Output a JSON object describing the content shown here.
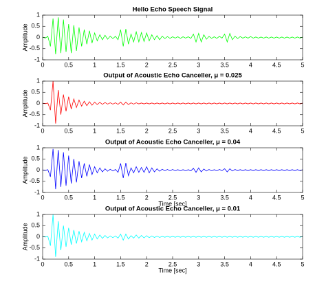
{
  "chart_data": [
    {
      "type": "line",
      "title": "Hello Echo Speech Signal",
      "ylabel": "Amplitude",
      "x": [
        0,
        0.05,
        0.1,
        0.15,
        0.2,
        0.25,
        0.3,
        0.35,
        0.4,
        0.45,
        0.5,
        0.55,
        0.6,
        0.65,
        0.7,
        0.75,
        0.8,
        0.85,
        0.9,
        0.95,
        1,
        1.05,
        1.1,
        1.15,
        1.2,
        1.25,
        1.3,
        1.35,
        1.4,
        1.45,
        1.5,
        1.55,
        1.6,
        1.65,
        1.7,
        1.75,
        1.8,
        1.85,
        1.9,
        1.95,
        2,
        2.05,
        2.1,
        2.15,
        2.2,
        2.25,
        2.3,
        2.35,
        2.4,
        2.45,
        2.5,
        2.55,
        2.6,
        2.65,
        2.7,
        2.75,
        2.8,
        2.85,
        2.9,
        2.95,
        3,
        3.05,
        3.1,
        3.15,
        3.2,
        3.25,
        3.3,
        3.35,
        3.4,
        3.45,
        3.5,
        3.55,
        3.6,
        3.65,
        3.7,
        3.75,
        3.8,
        3.85,
        3.9,
        3.95,
        4,
        4.05,
        4.1,
        4.15,
        4.2,
        4.25,
        4.3,
        4.35,
        4.4,
        4.45,
        4.5,
        4.55,
        4.6,
        4.65,
        4.7,
        4.75,
        4.8,
        4.85,
        4.9,
        4.95,
        5
      ],
      "series": [
        {
          "color": "#00ff00",
          "values": [
            0.02,
            -0.03,
            0.05,
            -0.4,
            0.85,
            -0.75,
            0.9,
            -0.7,
            0.8,
            -0.65,
            0.6,
            -0.7,
            0.55,
            -0.6,
            0.45,
            -0.4,
            0.35,
            -0.3,
            0.3,
            -0.25,
            0.2,
            -0.15,
            0.12,
            -0.1,
            0.1,
            -0.08,
            0.06,
            -0.05,
            0.05,
            -0.1,
            0.35,
            -0.4,
            0.38,
            -0.3,
            0.15,
            -0.2,
            0.25,
            -0.2,
            0.22,
            -0.18,
            0.2,
            -0.15,
            0.12,
            -0.1,
            0.08,
            -0.1,
            0.06,
            -0.05,
            0.04,
            -0.04,
            0.03,
            -0.03,
            0.03,
            -0.04,
            0.03,
            -0.03,
            0.03,
            -0.04,
            0.15,
            -0.2,
            0.18,
            -0.2,
            0.12,
            -0.08,
            0.05,
            -0.04,
            0.03,
            -0.04,
            0.05,
            -0.03,
            0.15,
            -0.2,
            0.18,
            -0.1,
            0.06,
            -0.05,
            0.04,
            -0.03,
            0.03,
            -0.03,
            0.04,
            -0.03,
            0.02,
            -0.03,
            0.02,
            -0.03,
            0.02,
            -0.03,
            0.02,
            -0.03,
            0.02,
            -0.03,
            0.02,
            -0.03,
            0.02,
            -0.03,
            0.02,
            -0.03,
            0.02,
            -0.03,
            0.02
          ]
        }
      ],
      "xlim": [
        0,
        5
      ],
      "ylim": [
        -1,
        1
      ],
      "xticks": [
        0,
        0.5,
        1,
        1.5,
        2,
        2.5,
        3,
        3.5,
        4,
        4.5,
        5
      ],
      "yticks": [
        -1,
        -0.5,
        0,
        0.5,
        1
      ]
    },
    {
      "type": "line",
      "title": "Output of Acoustic Echo Canceller, μ = 0.025",
      "ylabel": "Amplitude",
      "x": [
        0,
        0.05,
        0.1,
        0.15,
        0.2,
        0.25,
        0.3,
        0.35,
        0.4,
        0.45,
        0.5,
        0.55,
        0.6,
        0.65,
        0.7,
        0.75,
        0.8,
        0.85,
        0.9,
        0.95,
        1,
        1.05,
        1.1,
        1.15,
        1.2,
        1.25,
        1.3,
        1.35,
        1.4,
        1.45,
        1.5,
        1.55,
        1.6,
        1.65,
        1.7,
        1.75,
        1.8,
        1.85,
        1.9,
        1.95,
        2,
        2.05,
        2.1,
        2.15,
        2.2,
        2.25,
        2.3,
        2.35,
        2.4,
        2.45,
        2.5,
        2.55,
        2.6,
        2.65,
        2.7,
        2.75,
        2.8,
        2.85,
        2.9,
        2.95,
        3,
        3.05,
        3.1,
        3.15,
        3.2,
        3.25,
        3.3,
        3.35,
        3.4,
        3.45,
        3.5,
        3.55,
        3.6,
        3.65,
        3.7,
        3.75,
        3.8,
        3.85,
        3.9,
        3.95,
        4,
        4.05,
        4.1,
        4.15,
        4.2,
        4.25,
        4.3,
        4.35,
        4.4,
        4.45,
        4.5,
        4.55,
        4.6,
        4.65,
        4.7,
        4.75,
        4.8,
        4.85,
        4.9,
        4.95,
        5
      ],
      "series": [
        {
          "color": "#ff0000",
          "values": [
            0.01,
            -0.01,
            0.02,
            -0.3,
            1,
            -0.9,
            0.6,
            -0.5,
            0.4,
            -0.35,
            0.3,
            -0.25,
            0.2,
            -0.18,
            0.15,
            -0.12,
            0.1,
            -0.1,
            0.08,
            -0.08,
            0.06,
            -0.05,
            0.05,
            -0.04,
            0.04,
            -0.03,
            0.03,
            -0.03,
            0.03,
            -0.04,
            0.06,
            -0.07,
            0.06,
            -0.05,
            0.03,
            -0.03,
            0.03,
            -0.02,
            0.02,
            -0.02,
            0.02,
            -0.02,
            0.02,
            -0.02,
            0.02,
            -0.02,
            0.02,
            -0.02,
            0.02,
            -0.02,
            0.02,
            -0.02,
            0.02,
            -0.02,
            0.02,
            -0.02,
            0.02,
            -0.02,
            0.02,
            -0.02,
            0.02,
            -0.02,
            0.02,
            -0.02,
            0.02,
            -0.02,
            0.02,
            -0.02,
            0.02,
            -0.02,
            0.02,
            -0.02,
            0.02,
            -0.02,
            0.02,
            -0.02,
            0.02,
            -0.02,
            0.02,
            -0.02,
            0.02,
            -0.02,
            0.02,
            -0.02,
            0.02,
            -0.02,
            0.02,
            -0.02,
            0.02,
            -0.02,
            0.02,
            -0.02,
            0.02,
            -0.02,
            0.02,
            -0.02,
            0.02,
            -0.02,
            0.02,
            -0.02,
            0.02
          ]
        }
      ],
      "xlim": [
        0,
        5
      ],
      "ylim": [
        -1,
        1
      ],
      "xticks": [
        0,
        0.5,
        1,
        1.5,
        2,
        2.5,
        3,
        3.5,
        4,
        4.5,
        5
      ],
      "yticks": [
        -1,
        -0.5,
        0,
        0.5,
        1
      ]
    },
    {
      "type": "line",
      "title": "Output of Acoustic Echo Canceller, μ = 0.04",
      "xlabel": "Time [sec]",
      "ylabel": "Amplitude",
      "x": [
        0,
        0.05,
        0.1,
        0.15,
        0.2,
        0.25,
        0.3,
        0.35,
        0.4,
        0.45,
        0.5,
        0.55,
        0.6,
        0.65,
        0.7,
        0.75,
        0.8,
        0.85,
        0.9,
        0.95,
        1,
        1.05,
        1.1,
        1.15,
        1.2,
        1.25,
        1.3,
        1.35,
        1.4,
        1.45,
        1.5,
        1.55,
        1.6,
        1.65,
        1.7,
        1.75,
        1.8,
        1.85,
        1.9,
        1.95,
        2,
        2.05,
        2.1,
        2.15,
        2.2,
        2.25,
        2.3,
        2.35,
        2.4,
        2.45,
        2.5,
        2.55,
        2.6,
        2.65,
        2.7,
        2.75,
        2.8,
        2.85,
        2.9,
        2.95,
        3,
        3.05,
        3.1,
        3.15,
        3.2,
        3.25,
        3.3,
        3.35,
        3.4,
        3.45,
        3.5,
        3.55,
        3.6,
        3.65,
        3.7,
        3.75,
        3.8,
        3.85,
        3.9,
        3.95,
        4,
        4.05,
        4.1,
        4.15,
        4.2,
        4.25,
        4.3,
        4.35,
        4.4,
        4.45,
        4.5,
        4.55,
        4.6,
        4.65,
        4.7,
        4.75,
        4.8,
        4.85,
        4.9,
        4.95,
        5
      ],
      "series": [
        {
          "color": "#0000ff",
          "values": [
            0.01,
            -0.01,
            0.02,
            -0.3,
            0.95,
            -0.85,
            0.9,
            -0.75,
            0.8,
            -0.7,
            0.65,
            -0.6,
            0.5,
            -0.55,
            0.4,
            -0.35,
            0.3,
            -0.28,
            0.25,
            -0.2,
            0.15,
            -0.12,
            0.1,
            -0.08,
            0.06,
            -0.05,
            0.04,
            -0.04,
            0.03,
            -0.1,
            0.3,
            -0.35,
            0.32,
            -0.25,
            0.1,
            -0.12,
            0.15,
            -0.1,
            0.12,
            -0.1,
            0.15,
            -0.12,
            0.1,
            -0.08,
            0.06,
            -0.05,
            0.04,
            -0.03,
            0.03,
            -0.03,
            0.03,
            -0.03,
            0.02,
            -0.03,
            0.02,
            -0.03,
            0.02,
            -0.03,
            0.08,
            -0.1,
            0.1,
            -0.08,
            0.05,
            -0.04,
            0.03,
            -0.03,
            0.02,
            -0.03,
            0.03,
            -0.02,
            0.06,
            -0.08,
            0.06,
            -0.04,
            0.03,
            -0.02,
            0.02,
            -0.02,
            0.02,
            -0.02,
            0.02,
            -0.02,
            0.02,
            -0.02,
            0.02,
            -0.02,
            0.02,
            -0.02,
            0.02,
            -0.02,
            0.02,
            -0.02,
            0.02,
            -0.02,
            0.02,
            -0.02,
            0.02,
            -0.02,
            0.02,
            -0.02,
            0.02
          ]
        }
      ],
      "xlim": [
        0,
        5
      ],
      "ylim": [
        -1,
        1
      ],
      "xticks": [
        0,
        0.5,
        1,
        1.5,
        2,
        2.5,
        3,
        3.5,
        4,
        4.5,
        5
      ],
      "yticks": [
        -1,
        -0.5,
        0,
        0.5,
        1
      ]
    },
    {
      "type": "line",
      "title": "Output of Acoustic Echo Canceller, μ = 0.01",
      "xlabel": "Time [sec]",
      "ylabel": "Amplitude",
      "x": [
        0,
        0.05,
        0.1,
        0.15,
        0.2,
        0.25,
        0.3,
        0.35,
        0.4,
        0.45,
        0.5,
        0.55,
        0.6,
        0.65,
        0.7,
        0.75,
        0.8,
        0.85,
        0.9,
        0.95,
        1,
        1.05,
        1.1,
        1.15,
        1.2,
        1.25,
        1.3,
        1.35,
        1.4,
        1.45,
        1.5,
        1.55,
        1.6,
        1.65,
        1.7,
        1.75,
        1.8,
        1.85,
        1.9,
        1.95,
        2,
        2.05,
        2.1,
        2.15,
        2.2,
        2.25,
        2.3,
        2.35,
        2.4,
        2.45,
        2.5,
        2.55,
        2.6,
        2.65,
        2.7,
        2.75,
        2.8,
        2.85,
        2.9,
        2.95,
        3,
        3.05,
        3.1,
        3.15,
        3.2,
        3.25,
        3.3,
        3.35,
        3.4,
        3.45,
        3.5,
        3.55,
        3.6,
        3.65,
        3.7,
        3.75,
        3.8,
        3.85,
        3.9,
        3.95,
        4,
        4.05,
        4.1,
        4.15,
        4.2,
        4.25,
        4.3,
        4.35,
        4.4,
        4.45,
        4.5,
        4.55,
        4.6,
        4.65,
        4.7,
        4.75,
        4.8,
        4.85,
        4.9,
        4.95,
        5
      ],
      "series": [
        {
          "color": "#00ffff",
          "values": [
            0.01,
            -0.01,
            0.02,
            -0.4,
            1,
            -0.9,
            0.7,
            -0.6,
            0.5,
            -0.45,
            0.4,
            -0.35,
            0.3,
            -0.3,
            0.25,
            -0.22,
            0.2,
            -0.18,
            0.15,
            -0.15,
            0.12,
            -0.1,
            0.08,
            -0.07,
            0.06,
            -0.05,
            0.04,
            -0.04,
            0.04,
            -0.06,
            0.12,
            -0.15,
            0.12,
            -0.1,
            0.05,
            -0.06,
            0.08,
            -0.06,
            0.06,
            -0.05,
            0.05,
            -0.04,
            0.04,
            -0.03,
            0.03,
            -0.03,
            0.02,
            -0.02,
            0.02,
            -0.02,
            0.02,
            -0.02,
            0.02,
            -0.02,
            0.02,
            -0.02,
            0.02,
            -0.02,
            0.02,
            -0.02,
            0.02,
            -0.02,
            0.02,
            -0.02,
            0.02,
            -0.02,
            0.02,
            -0.02,
            0.02,
            -0.02,
            0.02,
            -0.02,
            0.02,
            -0.02,
            0.02,
            -0.02,
            0.02,
            -0.02,
            0.02,
            -0.02,
            0.02,
            -0.02,
            0.02,
            -0.02,
            0.02,
            -0.02,
            0.02,
            -0.02,
            0.02,
            -0.02,
            0.02,
            -0.02,
            0.02,
            -0.02,
            0.02,
            -0.02,
            0.02,
            -0.02,
            0.02,
            -0.02,
            0.02
          ]
        }
      ],
      "xlim": [
        0,
        5
      ],
      "ylim": [
        -1,
        1
      ],
      "xticks": [
        0,
        0.5,
        1,
        1.5,
        2,
        2.5,
        3,
        3.5,
        4,
        4.5,
        5
      ],
      "yticks": [
        -1,
        -0.5,
        0,
        0.5,
        1
      ]
    }
  ]
}
